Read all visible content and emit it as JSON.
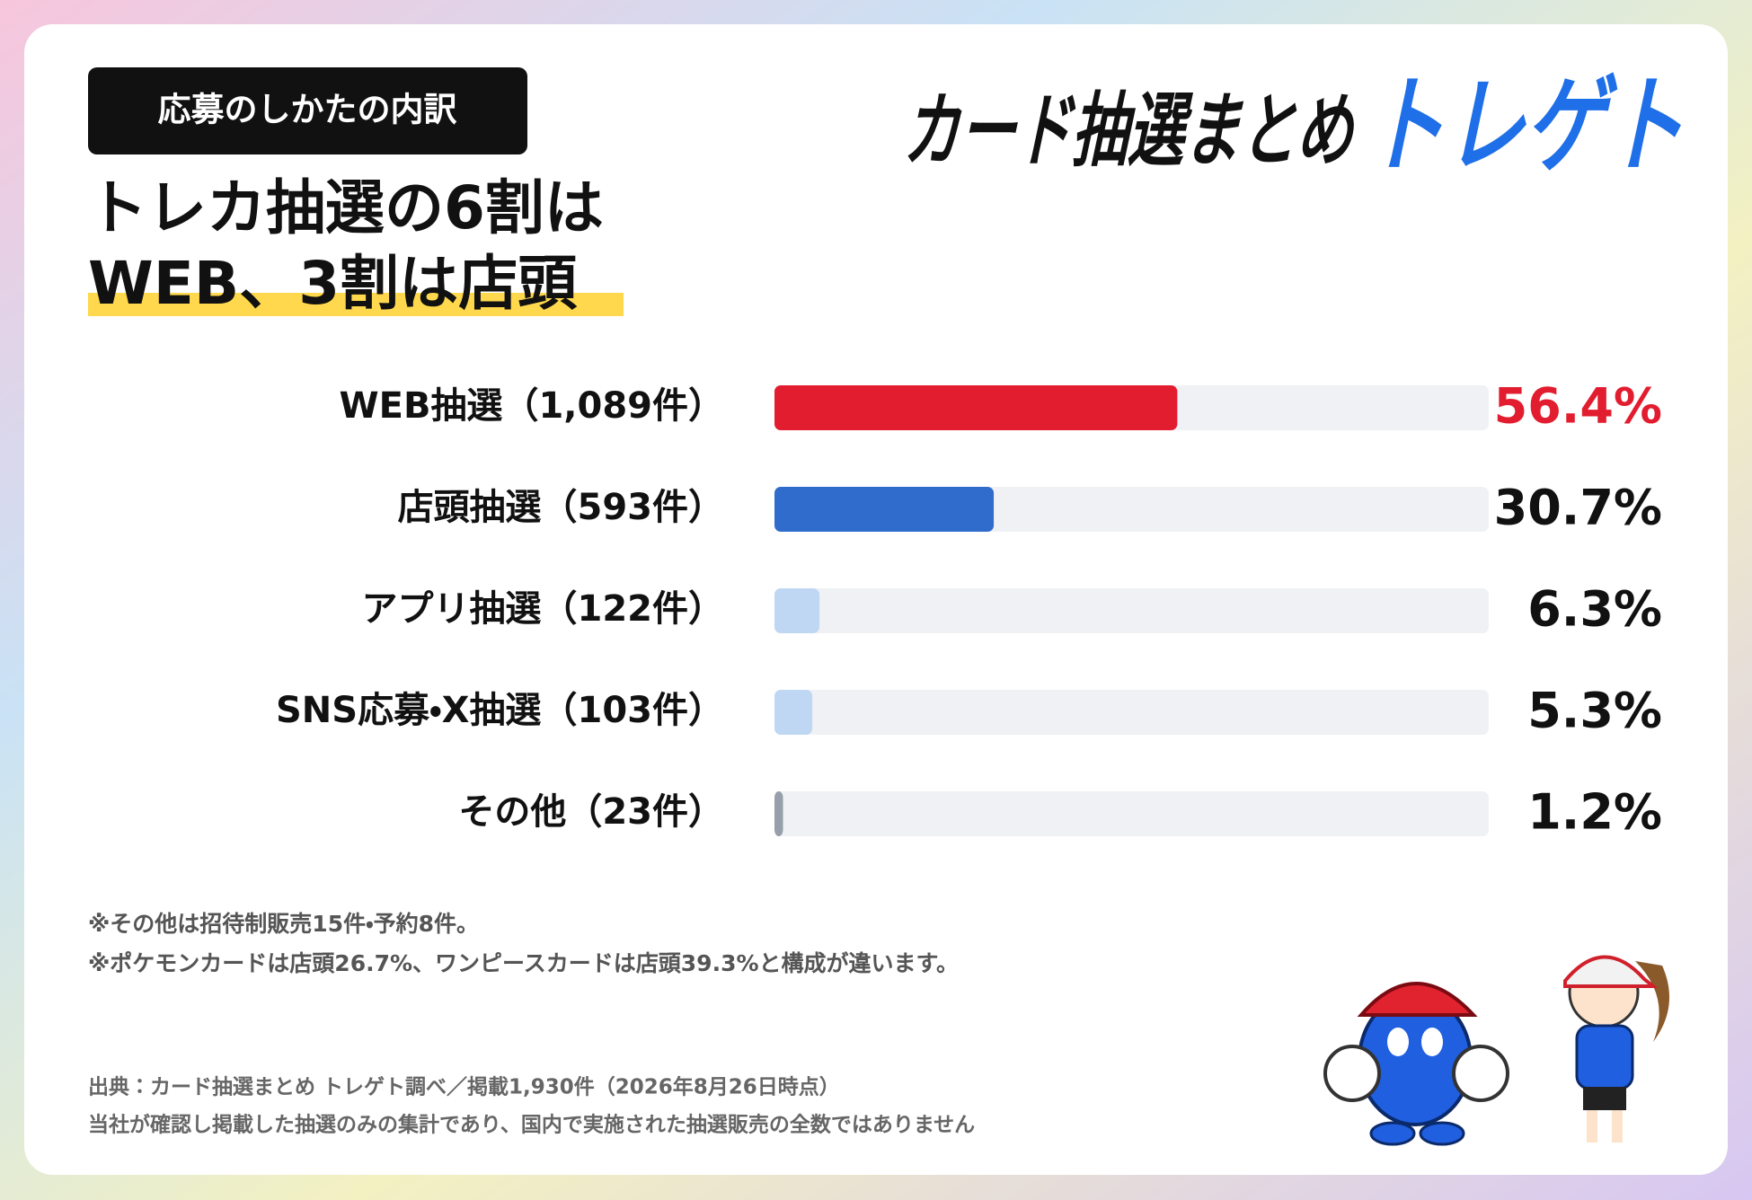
{
  "badge": "応募のしかたの内訳",
  "headline": {
    "lines": [
      "トレカ抽選の6割は",
      "WEB、3割は店頭"
    ]
  },
  "logo": {
    "text": "カード抽選まとめ",
    "brand": "トレゲト"
  },
  "chart_data": {
    "type": "bar",
    "orientation": "horizontal",
    "categories": [
      "WEB抽選（1,089件）",
      "店頭抽選（593件）",
      "アプリ抽選（122件）",
      "SNS応募・X抽選（103件）",
      "その他（23件）"
    ],
    "values": [
      56.4,
      30.7,
      6.3,
      5.3,
      1.2
    ],
    "value_labels": [
      "56.4%",
      "30.7%",
      "6.3%",
      "5.3%",
      "1.2%"
    ],
    "colors": [
      "#e21d2f",
      "#2f6ccc",
      "#bfd7f3",
      "#bfd7f3",
      "#97a0aa"
    ],
    "value_label_colors": [
      "#e21d2f",
      "#111111",
      "#111111",
      "#111111",
      "#111111"
    ],
    "track_color": "#f0f1f4",
    "xlim": [
      0,
      100
    ]
  },
  "notes": [
    "※その他は招待制販売15件・予約8件。",
    "※ポケモンカードは店頭26.7%、ワンピースカードは店頭39.3%と構成が違います。"
  ],
  "source": [
    "出典：カード抽選まとめ トレゲト調べ／掲載1,930件（2026年8月26日時点）",
    "当社が確認し掲載した抽選のみの集計であり、国内で実施された抽選販売の全数ではありません"
  ]
}
